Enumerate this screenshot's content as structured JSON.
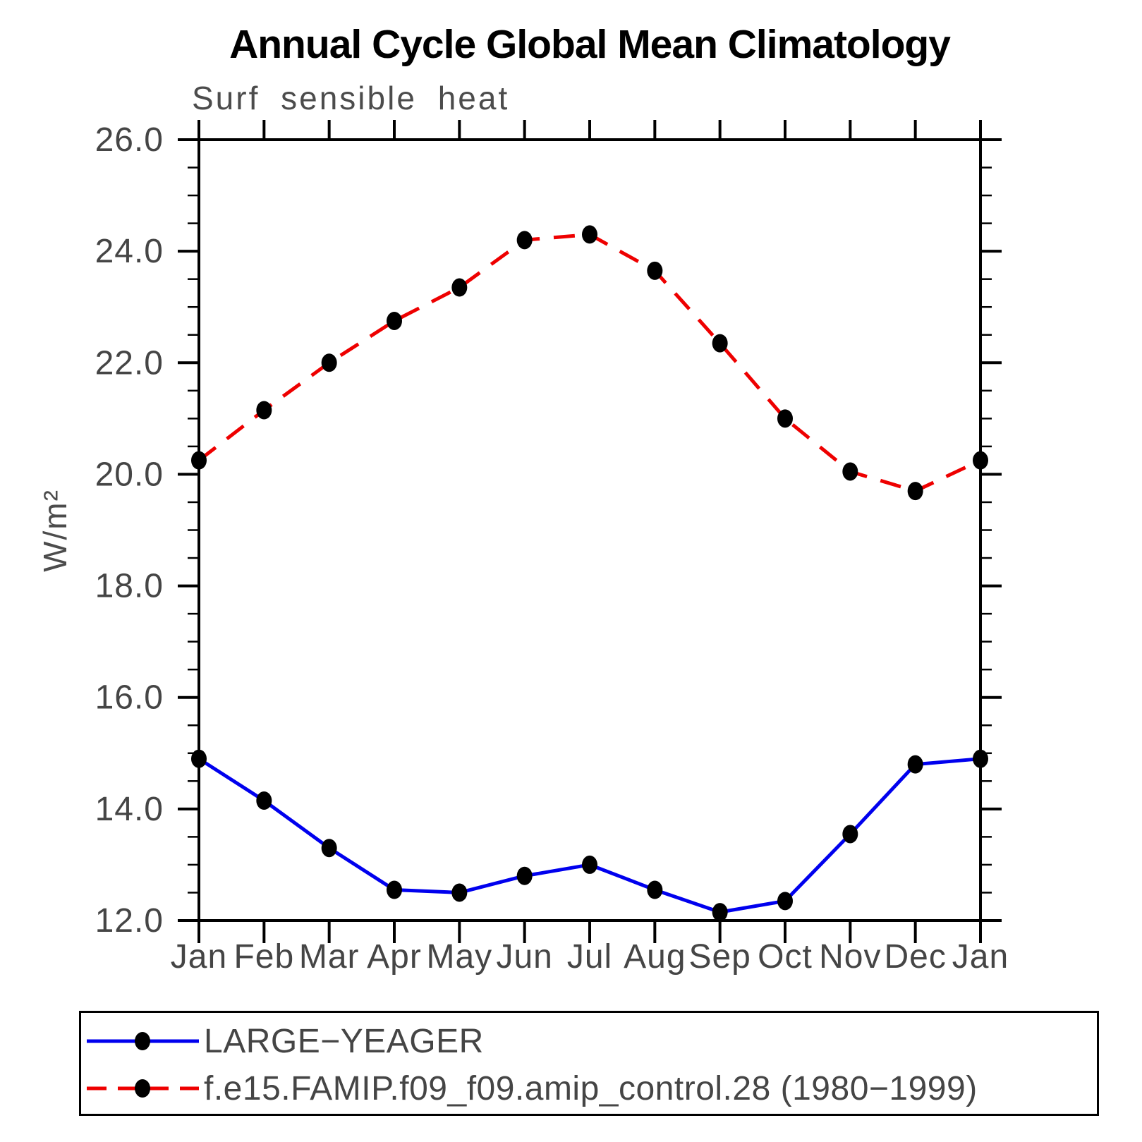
{
  "chart_data": {
    "type": "line",
    "title": "Annual Cycle Global Mean Climatology",
    "subtitle": "Surf sensible heat",
    "xlabel": "",
    "ylabel": "W/m²",
    "categories": [
      "Jan",
      "Feb",
      "Mar",
      "Apr",
      "May",
      "Jun",
      "Jul",
      "Aug",
      "Sep",
      "Oct",
      "Nov",
      "Dec",
      "Jan"
    ],
    "ylim": [
      12.0,
      26.0
    ],
    "ytick_major": 2.0,
    "ytick_minor": 0.5,
    "ytick_label_format_decimals": 1,
    "grid": false,
    "legend_position": "bottom",
    "axis_color": "#000000",
    "label_color": "#454545",
    "series": [
      {
        "name": "LARGE−YEAGER",
        "color": "#0000ee",
        "style": "solid",
        "marker": "filled-circle",
        "marker_color": "#000000",
        "values": [
          14.9,
          14.15,
          13.3,
          12.55,
          12.5,
          12.8,
          13.0,
          12.55,
          12.15,
          12.35,
          13.55,
          14.8,
          14.9
        ]
      },
      {
        "name": "f.e15.FAMIP.f09_f09.amip_control.28 (1980−1999)",
        "color": "#ee0000",
        "style": "dashed",
        "marker": "filled-circle",
        "marker_color": "#000000",
        "values": [
          20.25,
          21.15,
          22.0,
          22.75,
          23.35,
          24.2,
          24.3,
          23.65,
          22.35,
          21.0,
          20.05,
          19.7,
          20.25
        ]
      }
    ]
  }
}
